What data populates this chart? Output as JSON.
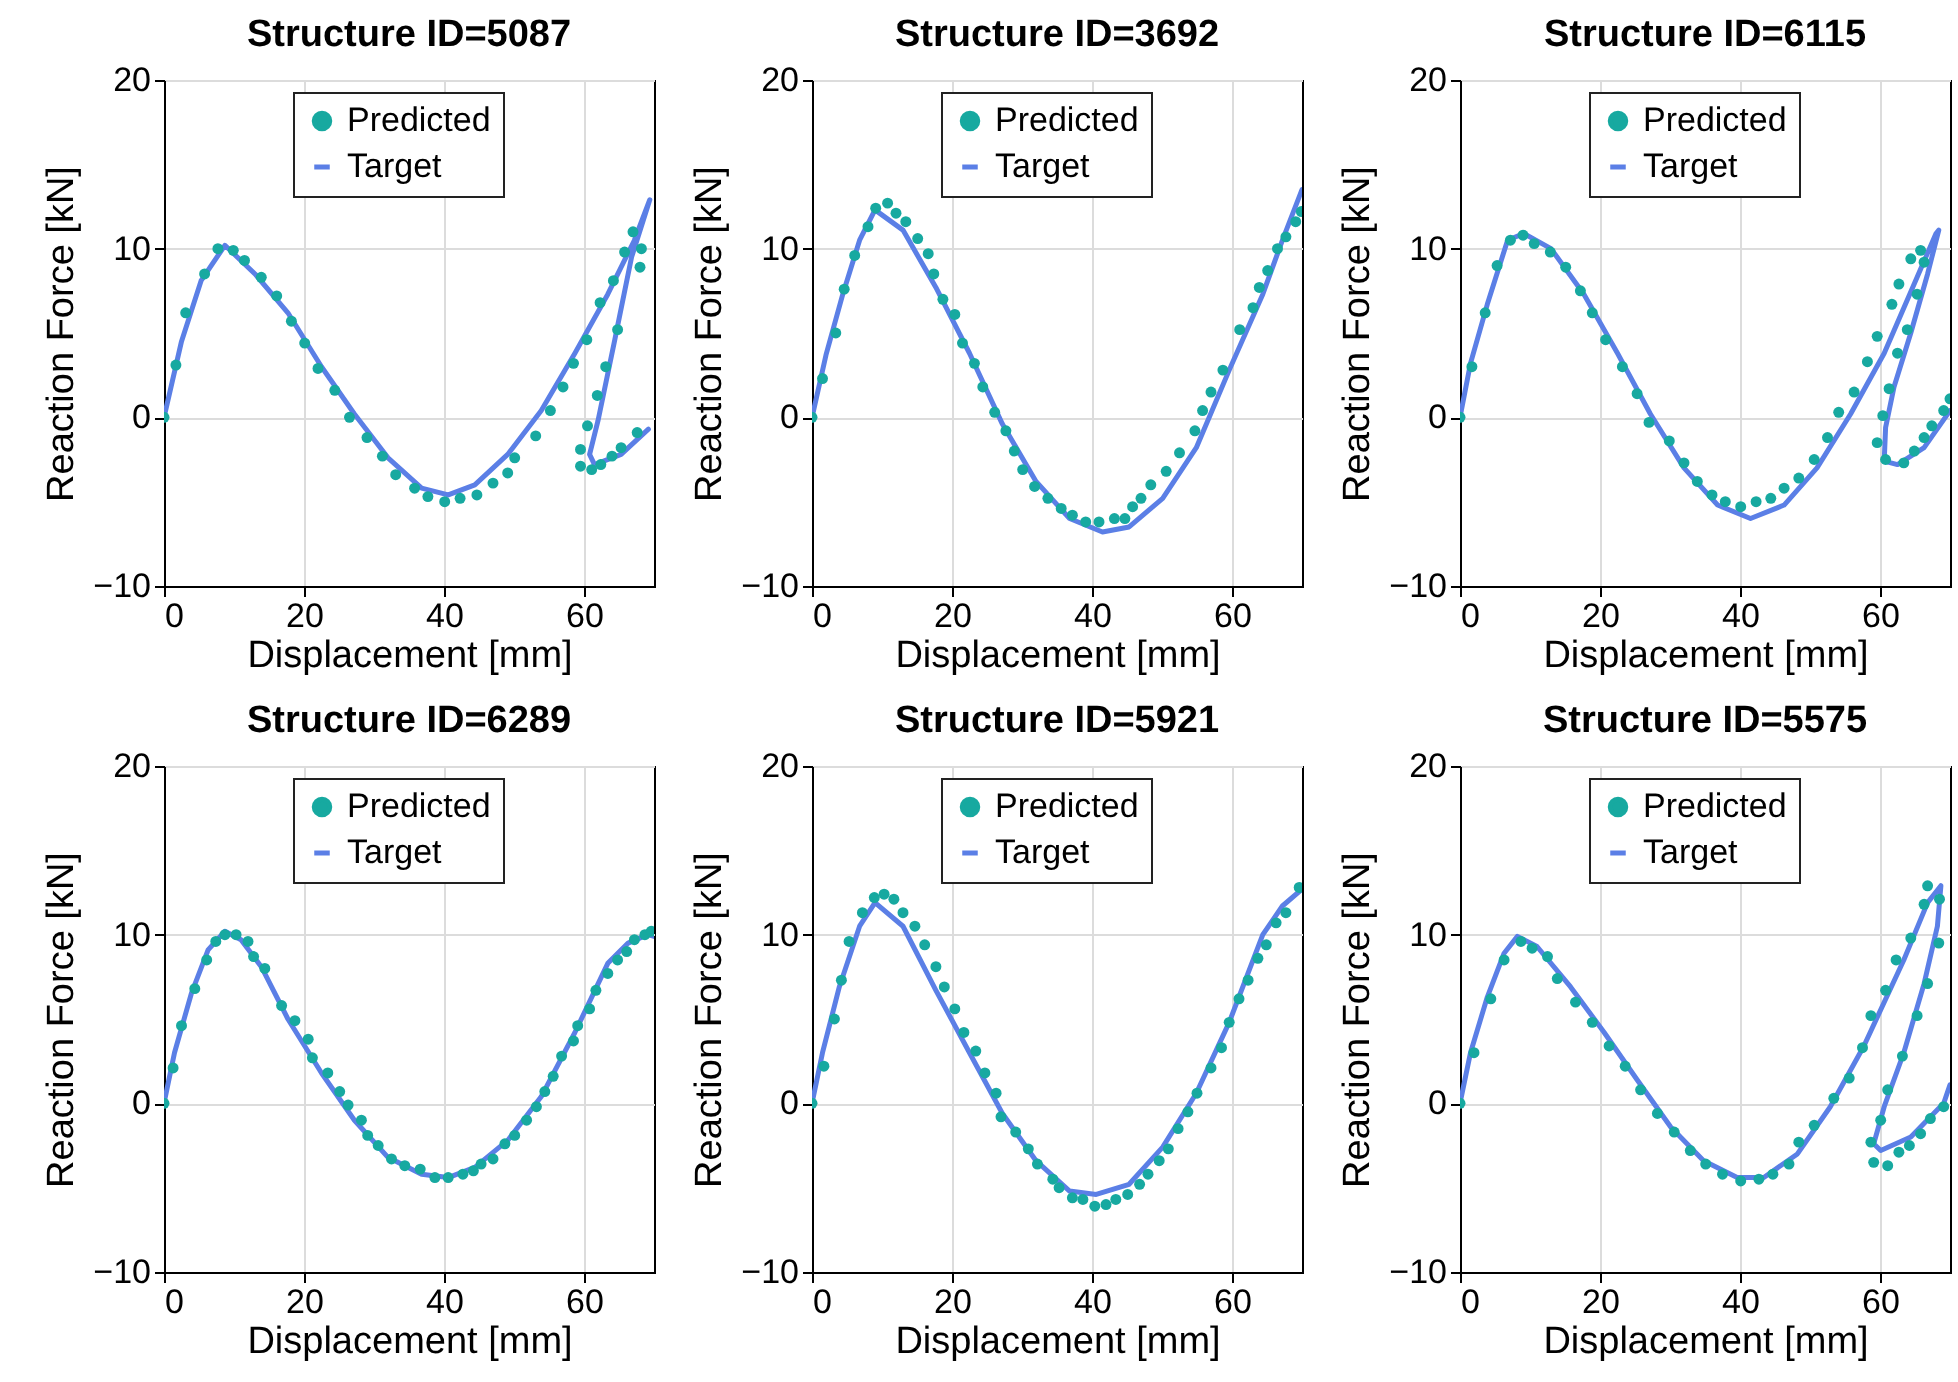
{
  "chart_data": [
    {
      "type": "line",
      "title": "Structure ID=5087",
      "xlabel": "Displacement [mm]",
      "ylabel": "Reaction Force [kN]",
      "xlim": [
        0,
        70
      ],
      "xticks": [
        0,
        20,
        40,
        60
      ],
      "ylim": [
        -10,
        20
      ],
      "yticks": [
        -10,
        0,
        10,
        20
      ],
      "grid": true,
      "legend": "top",
      "series": [
        {
          "name": "Predicted",
          "type": "scatter",
          "marker": "circle",
          "color": "#17a9a0",
          "x": [
            0,
            1.7,
            3.1,
            5.8,
            7.7,
            9.9,
            11.5,
            13.9,
            16.1,
            18.2,
            20.1,
            22,
            24.4,
            26.5,
            29,
            31.2,
            33.1,
            35.8,
            37.7,
            40.1,
            42.3,
            44.7,
            47,
            49.1,
            50.1,
            53.1,
            55.2,
            57,
            58.5,
            60.4,
            62.3,
            64.2,
            65.8,
            67,
            68.2,
            68,
            64.8,
            63.1,
            61.9,
            60.5,
            59.5,
            59.5,
            61.1,
            62.4,
            64,
            65.3,
            67.6
          ],
          "values": [
            0,
            3.1,
            6.2,
            8.5,
            10,
            9.9,
            9.3,
            8.3,
            7.2,
            5.7,
            4.4,
            2.9,
            1.6,
            0,
            -1.2,
            -2.3,
            -3.4,
            -4.2,
            -4.7,
            -5,
            -4.8,
            -4.6,
            -3.9,
            -3.3,
            -2.4,
            -1.1,
            0.4,
            1.8,
            3.2,
            4.6,
            6.8,
            8.1,
            9.8,
            11,
            10,
            8.9,
            5.2,
            3,
            1.3,
            -0.5,
            -1.9,
            -2.9,
            -3.1,
            -2.8,
            -2.3,
            -1.8,
            -0.9
          ]
        },
        {
          "name": "Target",
          "type": "line",
          "color": "#5b7fe6",
          "x": [
            0,
            2.5,
            5.3,
            8.7,
            13,
            17.7,
            22.5,
            27.2,
            32,
            36.8,
            40.6,
            44.4,
            49.1,
            53.9,
            58.7,
            63.4,
            67.2,
            69.4,
            66.8,
            64.4,
            62,
            60.8,
            61.5,
            65.3,
            69.2
          ],
          "values": [
            0,
            4.5,
            8.1,
            10.2,
            8.5,
            6.2,
            3,
            0.2,
            -2.4,
            -4.2,
            -4.6,
            -4,
            -2.2,
            0.4,
            3.8,
            7.3,
            10.5,
            12.9,
            9.5,
            4.6,
            -0.2,
            -2.2,
            -2.8,
            -2.2,
            -0.7
          ]
        }
      ]
    },
    {
      "type": "line",
      "title": "Structure ID=3692",
      "xlabel": "Displacement [mm]",
      "ylabel": "Reaction Force [kN]",
      "xlim": [
        0,
        70
      ],
      "xticks": [
        0,
        20,
        40,
        60
      ],
      "ylim": [
        -10,
        20
      ],
      "yticks": [
        -10,
        0,
        10,
        20
      ],
      "grid": true,
      "legend": "top",
      "series": [
        {
          "name": "Predicted",
          "type": "scatter",
          "marker": "circle",
          "color": "#17a9a0",
          "x": [
            0,
            1.5,
            3.4,
            4.6,
            6.1,
            8,
            9.1,
            10.8,
            12,
            13.4,
            15.1,
            16.6,
            17.4,
            18.7,
            20.4,
            21.5,
            23.2,
            24.4,
            26.1,
            27.7,
            28.9,
            30.1,
            31.8,
            33.7,
            35.6,
            37.2,
            39.1,
            41,
            43.2,
            44.7,
            45.8,
            47,
            48.4,
            50.6,
            52.5,
            54.7,
            55.8,
            57,
            58.7,
            61.1,
            63,
            63.9,
            65.1,
            66.5,
            67.7,
            69.1,
            69.9
          ],
          "values": [
            0,
            2.3,
            5,
            7.6,
            9.6,
            11.3,
            12.4,
            12.7,
            12.1,
            11.6,
            10.6,
            9.7,
            8.5,
            7,
            6.1,
            4.4,
            3.2,
            1.8,
            0.3,
            -0.8,
            -2,
            -3.1,
            -4.1,
            -4.8,
            -5.4,
            -5.8,
            -6.2,
            -6.2,
            -6,
            -6,
            -5.3,
            -4.8,
            -4,
            -3.2,
            -2.1,
            -0.8,
            0.4,
            1.5,
            2.8,
            5.2,
            6.5,
            7.7,
            8.7,
            10,
            10.7,
            11.6,
            12.2
          ]
        },
        {
          "name": "Target",
          "type": "line",
          "color": "#5b7fe6",
          "x": [
            0,
            2,
            4.4,
            6.8,
            9,
            13,
            17.7,
            22.5,
            27.2,
            32,
            36.8,
            41.5,
            45.3,
            50.1,
            54.9,
            59.6,
            64.4,
            67.2,
            70
          ],
          "values": [
            0,
            3.7,
            7.3,
            10.5,
            12.3,
            11.1,
            7.7,
            3.8,
            -0.4,
            -3.8,
            -6,
            -6.8,
            -6.5,
            -4.8,
            -1.8,
            2.8,
            7.3,
            10.5,
            13.5
          ]
        }
      ]
    },
    {
      "type": "line",
      "title": "Structure ID=6115",
      "xlabel": "Displacement [mm]",
      "ylabel": "Reaction Force [kN]",
      "xlim": [
        0,
        70
      ],
      "xticks": [
        0,
        20,
        40,
        60
      ],
      "ylim": [
        -10,
        20
      ],
      "yticks": [
        -10,
        0,
        10,
        20
      ],
      "grid": true,
      "legend": "top",
      "series": [
        {
          "name": "Predicted",
          "type": "scatter",
          "marker": "circle",
          "color": "#17a9a0",
          "x": [
            0,
            1.7,
            3.6,
            5.3,
            7.2,
            9,
            10.6,
            12.9,
            15.1,
            17.2,
            18.9,
            20.8,
            23.2,
            25.3,
            27,
            29.9,
            32,
            33.9,
            36,
            37.9,
            40.1,
            42.3,
            44.4,
            46.3,
            48.4,
            50.6,
            52.5,
            54.1,
            56.3,
            58.2,
            59.6,
            61.7,
            62.7,
            64.4,
            65.8,
            66.3,
            65.3,
            63.9,
            62.5,
            61.3,
            60.4,
            59.6,
            60.8,
            63.4,
            64.9,
            66.3,
            67.4,
            69.1,
            70
          ],
          "values": [
            0,
            3,
            6.2,
            9,
            10.5,
            10.8,
            10.3,
            9.8,
            8.9,
            7.5,
            6.2,
            4.6,
            3,
            1.4,
            -0.3,
            -1.4,
            -2.7,
            -3.8,
            -4.6,
            -5,
            -5.3,
            -5,
            -4.8,
            -4.2,
            -3.6,
            -2.5,
            -1.2,
            0.3,
            1.5,
            3.3,
            4.8,
            6.7,
            7.9,
            9.4,
            9.9,
            9.2,
            7.3,
            5.2,
            3.8,
            1.7,
            0.1,
            -1.5,
            -2.5,
            -2.7,
            -2,
            -1.2,
            -0.5,
            0.4,
            1.1
          ]
        },
        {
          "name": "Target",
          "type": "line",
          "color": "#5b7fe6",
          "x": [
            0,
            1.5,
            3.9,
            6.8,
            9.1,
            13,
            17.7,
            22.5,
            27.2,
            32,
            36.8,
            41.5,
            46.3,
            51,
            55.8,
            60.6,
            65.3,
            68,
            68.4,
            66.8,
            64.4,
            62,
            60.8,
            60.6,
            62.5,
            66.3,
            70
          ],
          "values": [
            0,
            3.2,
            6.7,
            10.5,
            10.9,
            10,
            7.3,
            3.8,
            0.2,
            -3,
            -5.2,
            -6,
            -5.2,
            -3,
            0.2,
            3.8,
            8.3,
            10.9,
            11.1,
            8.5,
            5,
            1.8,
            -0.6,
            -2.6,
            -2.8,
            -1.8,
            0.4
          ]
        }
      ]
    },
    {
      "type": "line",
      "title": "Structure ID=6289",
      "xlabel": "Displacement [mm]",
      "ylabel": "Reaction Force [kN]",
      "xlim": [
        0,
        70
      ],
      "xticks": [
        0,
        20,
        40,
        60
      ],
      "ylim": [
        -10,
        20
      ],
      "yticks": [
        -10,
        0,
        10,
        20
      ],
      "grid": true,
      "legend": "top",
      "series": [
        {
          "name": "Predicted",
          "type": "scatter",
          "marker": "circle",
          "color": "#17a9a0",
          "x": [
            0,
            1.3,
            2.5,
            4.4,
            6.1,
            7.4,
            8.7,
            10.3,
            12,
            12.8,
            14.4,
            16.8,
            18.7,
            20.6,
            21.2,
            23.4,
            25.1,
            26.3,
            28.2,
            29.1,
            30.6,
            32.5,
            34.4,
            36.6,
            38.7,
            40.6,
            42.7,
            44.2,
            45.3,
            47,
            48.7,
            50.1,
            51.8,
            53.2,
            54.4,
            55.6,
            56.8,
            58.5,
            59.1,
            60.8,
            61.7,
            63.4,
            64.8,
            66.1,
            67.2,
            68.7,
            69.6
          ],
          "values": [
            0,
            2.1,
            4.6,
            6.8,
            8.5,
            9.6,
            10,
            10,
            9.6,
            8.7,
            8,
            5.8,
            4.9,
            3.8,
            2.7,
            1.8,
            0.7,
            -0.1,
            -1,
            -1.9,
            -2.5,
            -3.3,
            -3.7,
            -3.9,
            -4.4,
            -4.4,
            -4.2,
            -4,
            -3.6,
            -3.3,
            -2.4,
            -1.9,
            -1,
            -0.2,
            0.7,
            1.6,
            2.8,
            3.7,
            4.6,
            5.6,
            6.7,
            7.7,
            8.5,
            9,
            9.7,
            10,
            10.2
          ]
        },
        {
          "name": "Target",
          "type": "line",
          "color": "#5b7fe6",
          "x": [
            0,
            1.5,
            3.9,
            6.3,
            8.7,
            11,
            13.9,
            17.7,
            22.5,
            27.2,
            32,
            36.8,
            40.6,
            44.4,
            49.1,
            53.9,
            58.7,
            63.4,
            66.3,
            69.1,
            70
          ],
          "values": [
            0,
            3,
            6.5,
            9.1,
            10.2,
            9.7,
            8.1,
            5,
            1.8,
            -1,
            -3.2,
            -4.2,
            -4.4,
            -3.8,
            -2.2,
            0.4,
            4.2,
            8.3,
            9.5,
            10,
            9.9
          ]
        }
      ]
    },
    {
      "type": "line",
      "title": "Structure ID=5921",
      "xlabel": "Displacement [mm]",
      "ylabel": "Reaction Force [kN]",
      "xlim": [
        0,
        70
      ],
      "xticks": [
        0,
        20,
        40,
        60
      ],
      "ylim": [
        -10,
        20
      ],
      "yticks": [
        -10,
        0,
        10,
        20
      ],
      "grid": true,
      "legend": "top",
      "series": [
        {
          "name": "Predicted",
          "type": "scatter",
          "marker": "circle",
          "color": "#17a9a0",
          "x": [
            0,
            1.7,
            3.2,
            4.2,
            5.3,
            7.2,
            8.9,
            10.3,
            11.7,
            13,
            14.7,
            16.1,
            17.7,
            18.9,
            20.4,
            21.7,
            23.4,
            24.7,
            26.3,
            27,
            29.1,
            30.9,
            32.2,
            34.4,
            35.3,
            37.2,
            38.7,
            40.4,
            42,
            43.4,
            45.1,
            46.8,
            48,
            49.6,
            50.9,
            52.3,
            53.7,
            55,
            57,
            58.5,
            59.6,
            61,
            62.3,
            63.7,
            64.9,
            66.3,
            67.7,
            69.6
          ],
          "values": [
            0,
            2.2,
            5,
            7.3,
            9.6,
            11.3,
            12.2,
            12.4,
            12.1,
            11.3,
            10.5,
            9.4,
            8.1,
            6.9,
            5.6,
            4.2,
            3.1,
            1.8,
            0.6,
            -0.8,
            -1.7,
            -2.7,
            -3.6,
            -4.5,
            -5,
            -5.6,
            -5.7,
            -6.1,
            -6,
            -5.7,
            -5.4,
            -4.8,
            -4.2,
            -3.4,
            -2.7,
            -1.5,
            -0.5,
            0.6,
            2.1,
            3.3,
            4.8,
            6.2,
            7.3,
            8.6,
            9.4,
            10.7,
            11.3,
            12.8
          ]
        },
        {
          "name": "Target",
          "type": "line",
          "color": "#5b7fe6",
          "x": [
            0,
            1.5,
            3.9,
            6.8,
            9,
            13,
            17.7,
            22.5,
            27.2,
            32,
            36.8,
            40.6,
            45.3,
            50.1,
            54.9,
            59.6,
            64.4,
            67.2,
            70
          ],
          "values": [
            0,
            3,
            6.9,
            10.5,
            11.9,
            10.5,
            6.7,
            3,
            -0.6,
            -3.4,
            -5.2,
            -5.4,
            -4.8,
            -2.6,
            0.6,
            4.8,
            10,
            11.7,
            12.7
          ]
        }
      ]
    },
    {
      "type": "line",
      "title": "Structure ID=5575",
      "xlabel": "Displacement [mm]",
      "ylabel": "Reaction Force [kN]",
      "xlim": [
        0,
        70
      ],
      "xticks": [
        0,
        20,
        40,
        60
      ],
      "ylim": [
        -10,
        20
      ],
      "yticks": [
        -10,
        0,
        10,
        20
      ],
      "grid": true,
      "legend": "top",
      "series": [
        {
          "name": "Predicted",
          "type": "scatter",
          "marker": "circle",
          "color": "#17a9a0",
          "x": [
            0,
            2,
            4.4,
            6.3,
            8.7,
            10.3,
            12.5,
            13.9,
            16.5,
            18.9,
            21.3,
            23.6,
            25.8,
            28.2,
            30.6,
            32.9,
            35.1,
            37.5,
            40.1,
            42.7,
            44.7,
            47,
            48.4,
            50.6,
            53.4,
            55.6,
            57.5,
            58.7,
            60.8,
            62.3,
            64.4,
            66.3,
            66.8,
            68.5,
            68.4,
            66.8,
            65.3,
            63.2,
            61.1,
            60.1,
            58.7,
            59.1,
            61.1,
            62.7,
            64.2,
            65.8,
            67.2,
            69.1
          ],
          "values": [
            0,
            3,
            6.2,
            8.5,
            9.6,
            9.2,
            8.7,
            7.4,
            6,
            4.8,
            3.4,
            2.2,
            0.8,
            -0.6,
            -1.7,
            -2.8,
            -3.6,
            -4.2,
            -4.6,
            -4.5,
            -4.2,
            -3.6,
            -2.3,
            -1.3,
            0.3,
            1.5,
            3.3,
            5.2,
            6.7,
            8.5,
            9.8,
            11.8,
            12.9,
            12.1,
            9.5,
            7.1,
            5.2,
            2.8,
            0.8,
            -1,
            -2.3,
            -3.5,
            -3.7,
            -2.9,
            -2.5,
            -1.8,
            -0.9,
            -0.2
          ]
        },
        {
          "name": "Target",
          "type": "line",
          "color": "#5b7fe6",
          "x": [
            0,
            1.5,
            3.9,
            6.3,
            8.2,
            11,
            15.8,
            20.6,
            25.3,
            30.1,
            34.8,
            39.6,
            43.4,
            48.2,
            52.9,
            57.7,
            63.4,
            66.8,
            68.7,
            68.2,
            66.3,
            63.4,
            60.6,
            59.1,
            60.1,
            64.4,
            69.1,
            70
          ],
          "values": [
            0,
            3,
            6.3,
            8.9,
            9.9,
            9.3,
            6.9,
            4.2,
            1.4,
            -1.4,
            -3.4,
            -4.4,
            -4.4,
            -3,
            -0.2,
            3.4,
            8.5,
            11.9,
            12.9,
            10.5,
            7.1,
            3,
            -0.2,
            -2.4,
            -2.8,
            -2,
            0,
            1.1
          ]
        }
      ]
    }
  ]
}
